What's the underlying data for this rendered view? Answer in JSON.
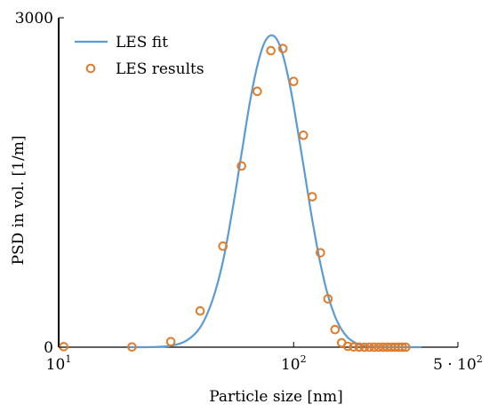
{
  "chart_data": {
    "type": "scatter",
    "xlabel": "Particle size [nm]",
    "ylabel": "PSD in vol. [1/m]",
    "x_scale": "log",
    "xlim": [
      10,
      500
    ],
    "ylim": [
      0,
      3000
    ],
    "x_ticks": [
      {
        "value": 10,
        "base": "10",
        "exp": "1"
      },
      {
        "value": 100,
        "base": "10",
        "exp": "2"
      },
      {
        "value": 500,
        "base": "5 · 10",
        "exp": "2"
      }
    ],
    "y_ticks": [
      {
        "value": 0,
        "label": "0"
      },
      {
        "value": 3000,
        "label": "3000"
      }
    ],
    "legend_position": "top-left",
    "series": [
      {
        "name": "LES fit",
        "kind": "line",
        "color": "#5b9bd5",
        "x": [
          20,
          25,
          30,
          35,
          40,
          45,
          50,
          55,
          60,
          65,
          70,
          75,
          80,
          85,
          90,
          95,
          100,
          110,
          120,
          130,
          140,
          150,
          160,
          170,
          180,
          190,
          200,
          250,
          300,
          350
        ],
        "y": [
          0,
          1,
          12,
          60,
          180,
          420,
          780,
          1260,
          1760,
          2220,
          2560,
          2770,
          2840,
          2800,
          2660,
          2450,
          2200,
          1660,
          1160,
          760,
          470,
          280,
          160,
          88,
          48,
          25,
          13,
          0,
          0,
          0
        ]
      },
      {
        "name": "LES results",
        "kind": "scatter",
        "color": "#e07b28",
        "x": [
          10.5,
          20.5,
          30,
          40,
          50,
          60,
          70,
          80,
          90,
          100,
          110,
          120,
          130,
          140,
          150,
          160,
          170,
          180,
          190,
          200,
          210,
          220,
          230,
          240,
          250,
          260,
          270,
          280,
          290,
          300
        ],
        "y": [
          5,
          2,
          50,
          330,
          920,
          1650,
          2330,
          2700,
          2720,
          2420,
          1930,
          1370,
          860,
          440,
          160,
          40,
          8,
          2,
          1,
          0,
          0,
          0,
          0,
          0,
          0,
          0,
          0,
          0,
          0,
          0
        ]
      }
    ]
  }
}
